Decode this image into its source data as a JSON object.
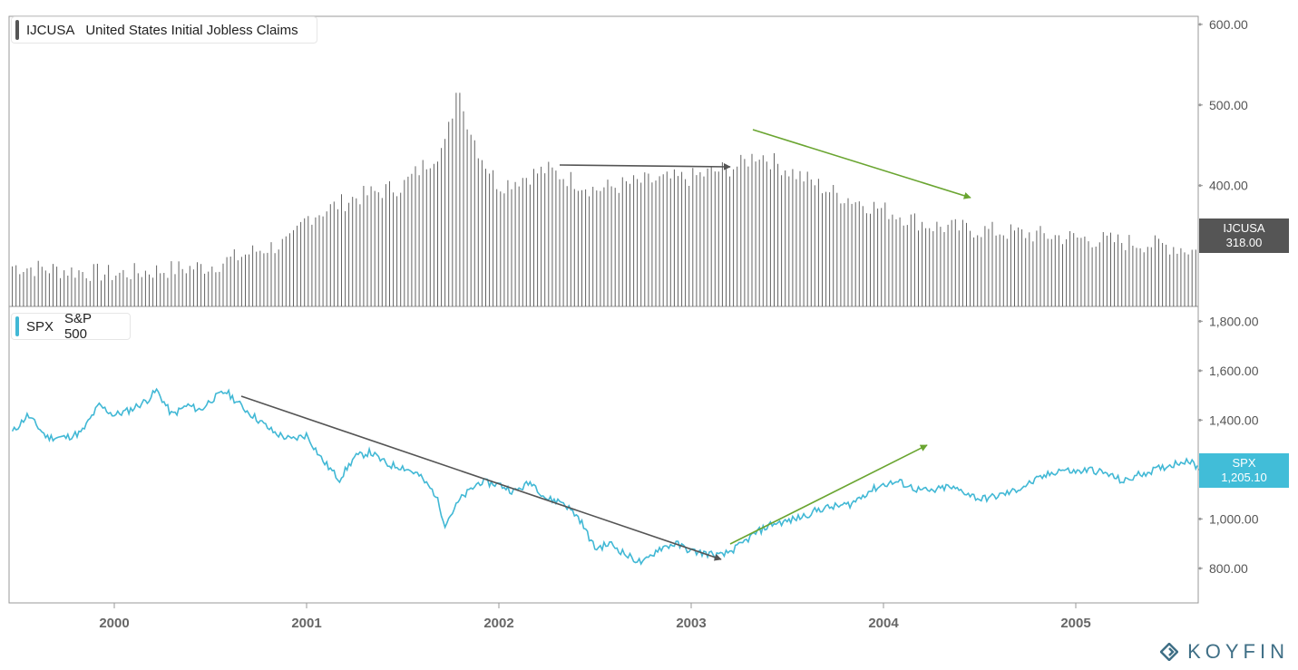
{
  "top_panel": {
    "ticker": "IJCUSA",
    "name": "United States Initial Jobless Claims",
    "last_tag_ticker": "IJCUSA",
    "last_tag_value": "318.00",
    "bar_color": "#636363",
    "tag_color": "#555555"
  },
  "bottom_panel": {
    "ticker": "SPX",
    "name": "S&P 500",
    "last_tag_ticker": "SPX",
    "last_tag_value": "1,205.10",
    "line_color": "#41b8d5",
    "tag_color": "#41bdd8"
  },
  "brand": {
    "name": "KOYFIN",
    "icon": "koyfin-logo-icon",
    "color": "#3f6f86"
  },
  "annotation_colors": {
    "dark": "#555555",
    "green": "#6aa531"
  },
  "chart_data": [
    {
      "type": "bar",
      "title": "IJCUSA United States Initial Jobless Claims",
      "x_ticks": [
        "2000",
        "2001",
        "2002",
        "2003",
        "2004",
        "2005"
      ],
      "y_ticks": [
        "400.00",
        "500.00",
        "600.00"
      ],
      "ylim": [
        250,
        610
      ],
      "grid": false,
      "last_value": 318.0,
      "x": [
        1999.47,
        2000,
        2000.25,
        2000.5,
        2000.75,
        2000.92,
        2001,
        2001.25,
        2001.5,
        2001.72,
        2001.78,
        2001.9,
        2002.0,
        2002.25,
        2002.5,
        2002.75,
        2003.0,
        2003.25,
        2003.35,
        2003.5,
        2003.75,
        2004.0,
        2004.25,
        2004.5,
        2004.75,
        2005.0,
        2005.25,
        2005.5,
        2005.64
      ],
      "values": [
        300,
        290,
        295,
        300,
        320,
        330,
        360,
        385,
        400,
        450,
        515,
        440,
        400,
        420,
        395,
        405,
        410,
        425,
        440,
        420,
        390,
        370,
        350,
        345,
        340,
        335,
        330,
        325,
        318
      ]
    },
    {
      "type": "line",
      "title": "SPX S&P 500",
      "x_ticks": [
        "2000",
        "2001",
        "2002",
        "2003",
        "2004",
        "2005"
      ],
      "y_ticks": [
        "800.00",
        "1,000.00",
        "1,200.00",
        "1,400.00",
        "1,600.00",
        "1,800.00"
      ],
      "ylim": [
        660,
        1860
      ],
      "grid": false,
      "last_value": 1205.1,
      "x": [
        1999.47,
        1999.55,
        1999.65,
        1999.75,
        1999.83,
        1999.92,
        2000.0,
        2000.08,
        2000.17,
        2000.22,
        2000.3,
        2000.38,
        2000.45,
        2000.5,
        2000.58,
        2000.67,
        2000.75,
        2000.83,
        2000.92,
        2001.0,
        2001.08,
        2001.17,
        2001.25,
        2001.33,
        2001.42,
        2001.5,
        2001.58,
        2001.67,
        2001.72,
        2001.8,
        2001.9,
        2002.0,
        2002.08,
        2002.17,
        2002.25,
        2002.33,
        2002.42,
        2002.5,
        2002.58,
        2002.67,
        2002.75,
        2002.83,
        2002.92,
        2003.0,
        2003.08,
        2003.16,
        2003.25,
        2003.33,
        2003.42,
        2003.5,
        2003.58,
        2003.67,
        2003.75,
        2003.83,
        2003.92,
        2004.0,
        2004.08,
        2004.17,
        2004.25,
        2004.33,
        2004.42,
        2004.5,
        2004.58,
        2004.67,
        2004.75,
        2004.83,
        2004.92,
        2005.0,
        2005.08,
        2005.17,
        2005.25,
        2005.33,
        2005.42,
        2005.5,
        2005.58,
        2005.64
      ],
      "values": [
        1350,
        1420,
        1330,
        1330,
        1350,
        1460,
        1420,
        1440,
        1480,
        1520,
        1420,
        1460,
        1440,
        1480,
        1517,
        1450,
        1400,
        1350,
        1320,
        1340,
        1240,
        1160,
        1250,
        1270,
        1220,
        1210,
        1180,
        1100,
        980,
        1080,
        1150,
        1140,
        1110,
        1150,
        1080,
        1070,
        1000,
        880,
        900,
        850,
        820,
        880,
        900,
        870,
        860,
        850,
        890,
        940,
        980,
        990,
        1010,
        1040,
        1050,
        1060,
        1110,
        1140,
        1150,
        1120,
        1110,
        1130,
        1110,
        1080,
        1090,
        1110,
        1140,
        1170,
        1200,
        1190,
        1200,
        1180,
        1150,
        1180,
        1200,
        1220,
        1240,
        1205.1
      ]
    }
  ]
}
